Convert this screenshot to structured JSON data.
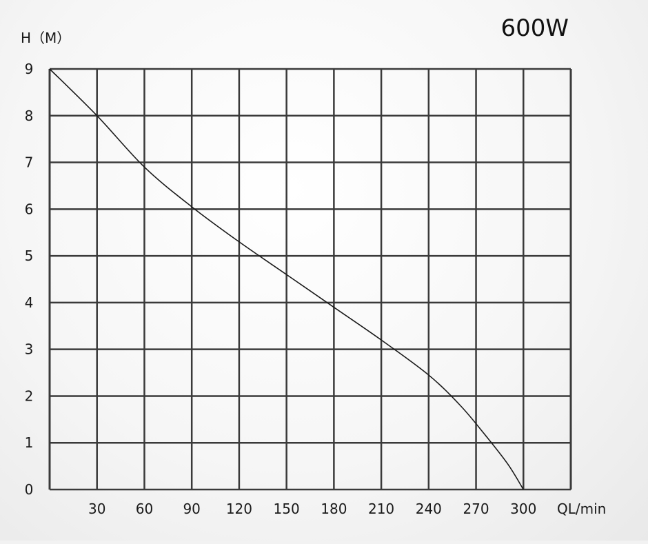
{
  "chart_data": {
    "type": "line",
    "title": "600W",
    "xlabel": "QL/min",
    "ylabel": "H（M）",
    "xlim": [
      0,
      330
    ],
    "ylim": [
      0,
      9
    ],
    "x_ticks": [
      30,
      60,
      90,
      120,
      150,
      180,
      210,
      240,
      270,
      300
    ],
    "y_ticks": [
      0,
      1,
      2,
      3,
      4,
      5,
      6,
      7,
      8,
      9
    ],
    "grid": true,
    "series": [
      {
        "x": [
          0,
          30,
          60,
          90,
          120,
          150,
          180,
          210,
          240,
          260,
          275,
          290,
          300
        ],
        "y": [
          9,
          8,
          6.9,
          6.05,
          5.3,
          4.6,
          3.9,
          3.2,
          2.45,
          1.8,
          1.2,
          0.55,
          0
        ]
      }
    ]
  }
}
